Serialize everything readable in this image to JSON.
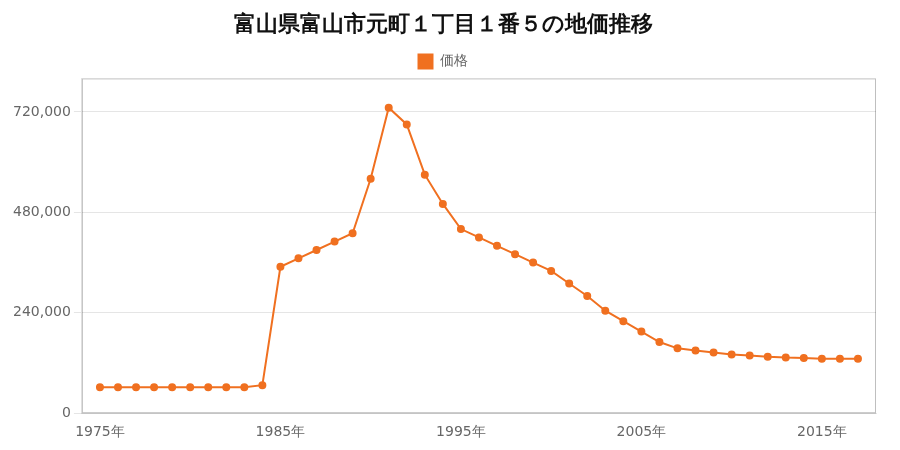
{
  "chart_data": {
    "type": "line",
    "title": "富山県富山市元町１丁目１番５の地価推移",
    "x": [
      1975,
      1976,
      1977,
      1978,
      1979,
      1980,
      1981,
      1982,
      1983,
      1984,
      1985,
      1986,
      1987,
      1988,
      1989,
      1990,
      1991,
      1992,
      1993,
      1994,
      1995,
      1996,
      1997,
      1998,
      1999,
      2000,
      2001,
      2002,
      2003,
      2004,
      2005,
      2006,
      2007,
      2008,
      2009,
      2010,
      2011,
      2012,
      2013,
      2014,
      2015,
      2016,
      2017
    ],
    "series": [
      {
        "name": "価格",
        "color": "#f07020",
        "marker": "circle",
        "values": [
          62000,
          62000,
          62000,
          62000,
          62000,
          62000,
          62000,
          62000,
          62000,
          67000,
          350000,
          370000,
          390000,
          410000,
          430000,
          560000,
          730000,
          690000,
          570000,
          500000,
          440000,
          420000,
          400000,
          380000,
          360000,
          340000,
          310000,
          280000,
          245000,
          220000,
          195000,
          170000,
          155000,
          150000,
          145000,
          140000,
          138000,
          135000,
          133000,
          132000,
          130000,
          130000,
          130000
        ]
      }
    ],
    "xlim": [
      1974,
      2018
    ],
    "xticks": [
      {
        "value": 1975,
        "label": "1975年"
      },
      {
        "value": 1985,
        "label": "1985年"
      },
      {
        "value": 1995,
        "label": "1995年"
      },
      {
        "value": 2005,
        "label": "2005年"
      },
      {
        "value": 2015,
        "label": "2015年"
      }
    ],
    "ylim": [
      0,
      800000
    ],
    "yticks": [
      0,
      {
        "value": 240000,
        "label": "240,000"
      },
      {
        "value": 480000,
        "label": "480,000"
      },
      {
        "value": 720000,
        "label": "720,000"
      }
    ],
    "grid": "y",
    "legend": "top"
  }
}
